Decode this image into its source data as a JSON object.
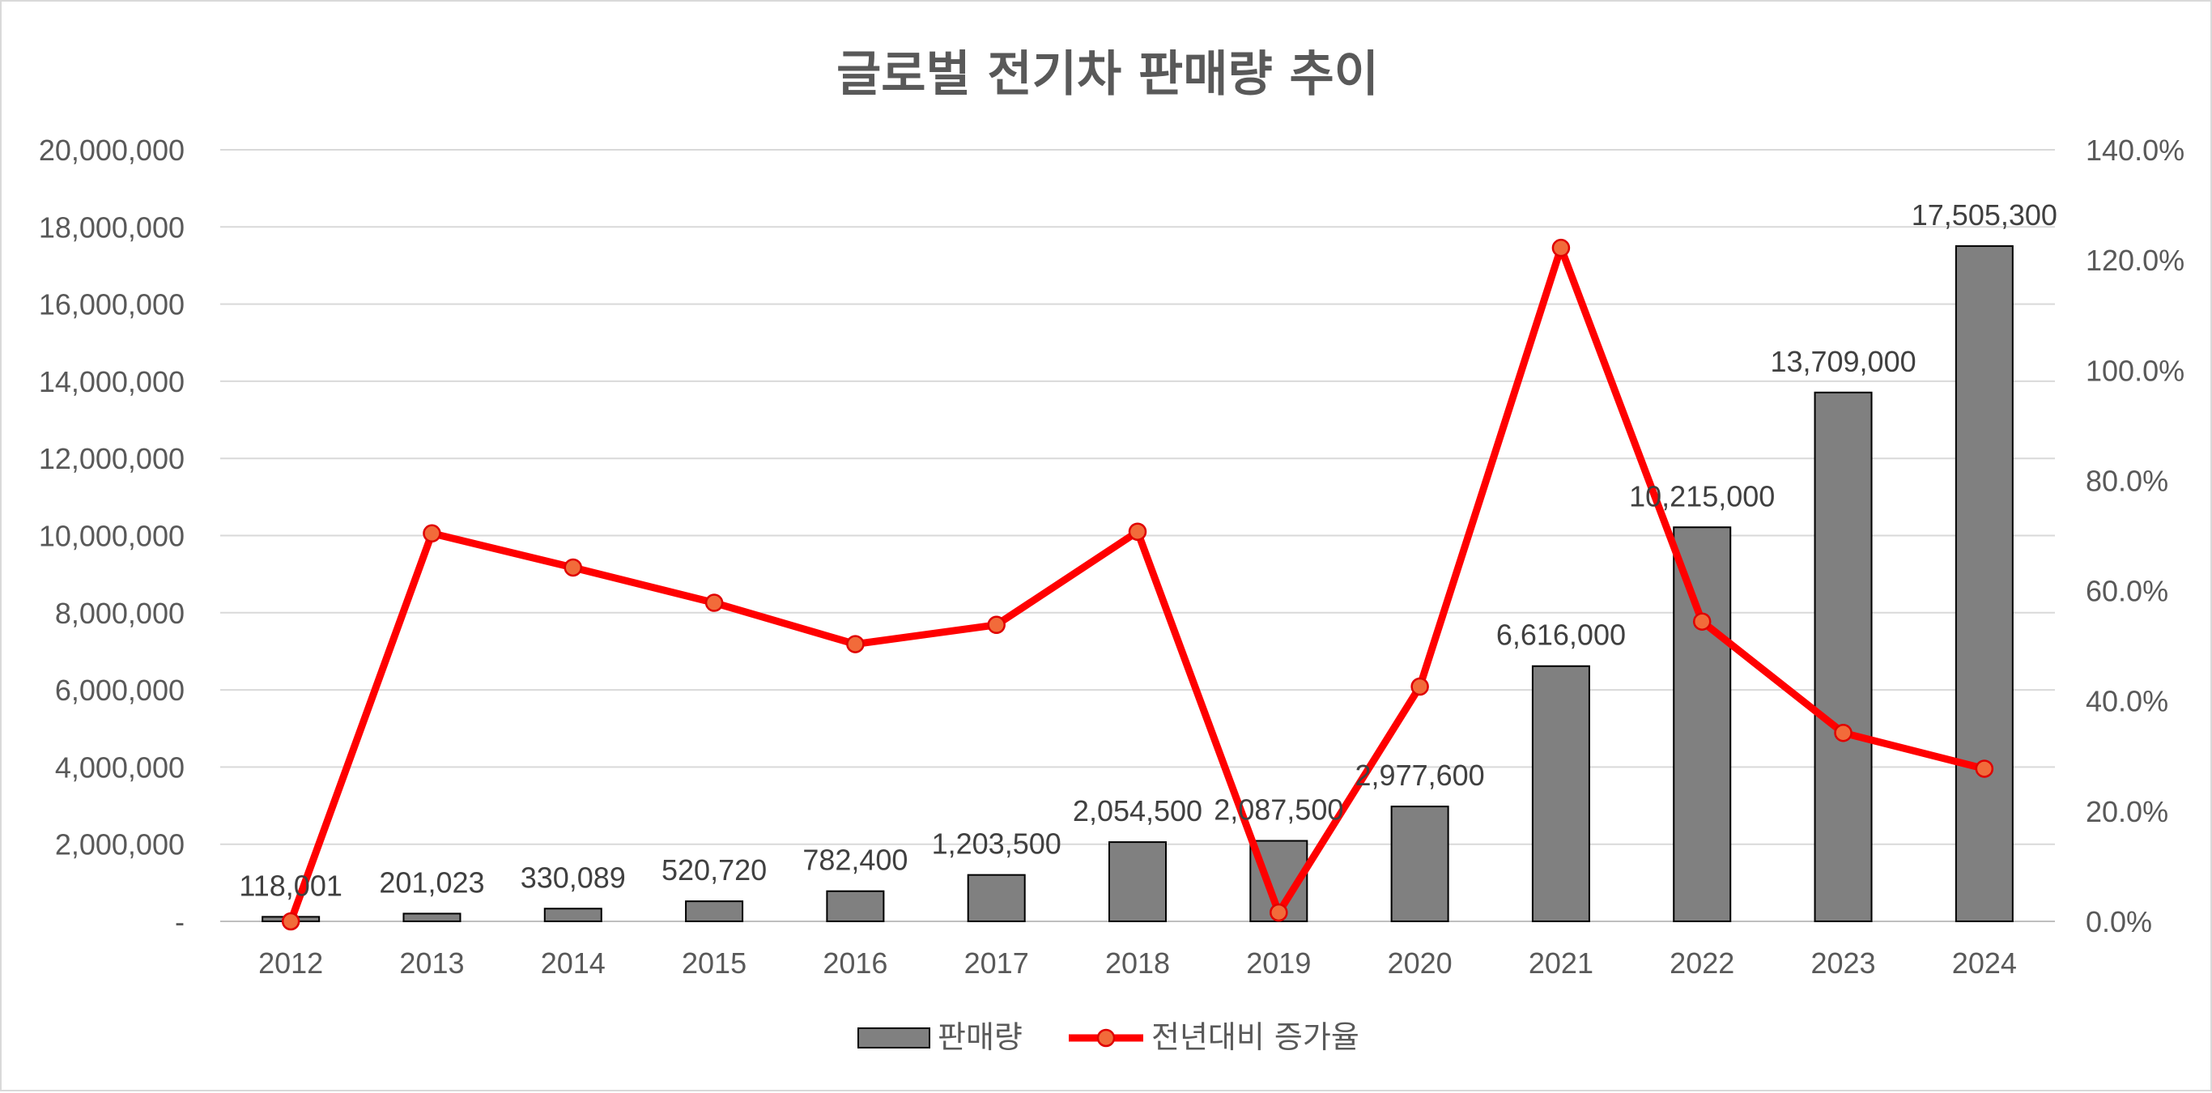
{
  "chart_data": {
    "type": "bar",
    "title": "글로벌 전기차 판매량 추이",
    "categories": [
      "2012",
      "2013",
      "2014",
      "2015",
      "2016",
      "2017",
      "2018",
      "2019",
      "2020",
      "2021",
      "2022",
      "2023",
      "2024"
    ],
    "series": [
      {
        "name": "판매량",
        "type": "bar",
        "axis": "left",
        "color": "#808080",
        "values": [
          118001,
          201023,
          330089,
          520720,
          782400,
          1203500,
          2054500,
          2087500,
          2977600,
          6616000,
          10215000,
          13709000,
          17505300
        ],
        "labels": [
          "118,001",
          "201,023",
          "330,089",
          "520,720",
          "782,400",
          "1,203,500",
          "2,054,500",
          "2,087,500",
          "2,977,600",
          "6,616,000",
          "10,215,000",
          "13,709,000",
          "17,505,300"
        ]
      },
      {
        "name": "전년대비 증가율",
        "type": "line",
        "axis": "right",
        "color": "#ff0000",
        "marker_color": "#f26b3a",
        "values": [
          0.0,
          70.4,
          64.2,
          57.8,
          50.3,
          53.8,
          70.7,
          1.6,
          42.6,
          122.2,
          54.4,
          34.2,
          27.7
        ]
      }
    ],
    "y_left": {
      "ylim": [
        0,
        20000000
      ],
      "ticks": [
        "-",
        "2,000,000",
        "4,000,000",
        "6,000,000",
        "8,000,000",
        "10,000,000",
        "12,000,000",
        "14,000,000",
        "16,000,000",
        "18,000,000",
        "20,000,000"
      ]
    },
    "y_right": {
      "ylim": [
        0,
        140
      ],
      "ticks": [
        "0.0%",
        "20.0%",
        "40.0%",
        "60.0%",
        "80.0%",
        "100.0%",
        "120.0%",
        "140.0%"
      ]
    },
    "grid": true,
    "legend_position": "bottom"
  }
}
